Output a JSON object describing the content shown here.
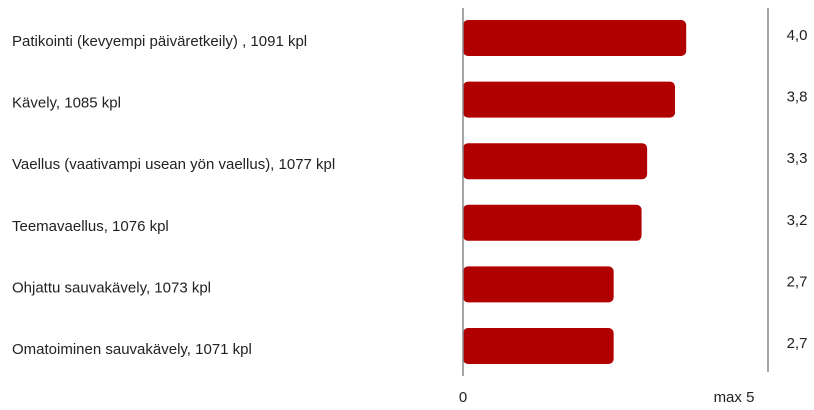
{
  "chart_data": {
    "type": "barh",
    "categories": [
      "Patikointi (kevyempi päiväretkeily) , 1091 kpl",
      "Kävely, 1085 kpl",
      "Vaellus (vaativampi usean yön vaellus), 1077 kpl",
      "Teemavaellus, 1076 kpl",
      "Ohjattu sauvakävely, 1073 kpl",
      "Omatoiminen sauvakävely, 1071 kpl"
    ],
    "values": [
      4.0,
      3.8,
      3.3,
      3.2,
      2.7,
      2.7
    ],
    "value_labels": [
      "4,0",
      "3,8",
      "3,3",
      "3,2",
      "2,7",
      "2,7"
    ],
    "color": "#b00000",
    "xlim": [
      0,
      5
    ],
    "xticks": [
      0,
      {
        "value": 5,
        "label": "max 5"
      }
    ]
  }
}
